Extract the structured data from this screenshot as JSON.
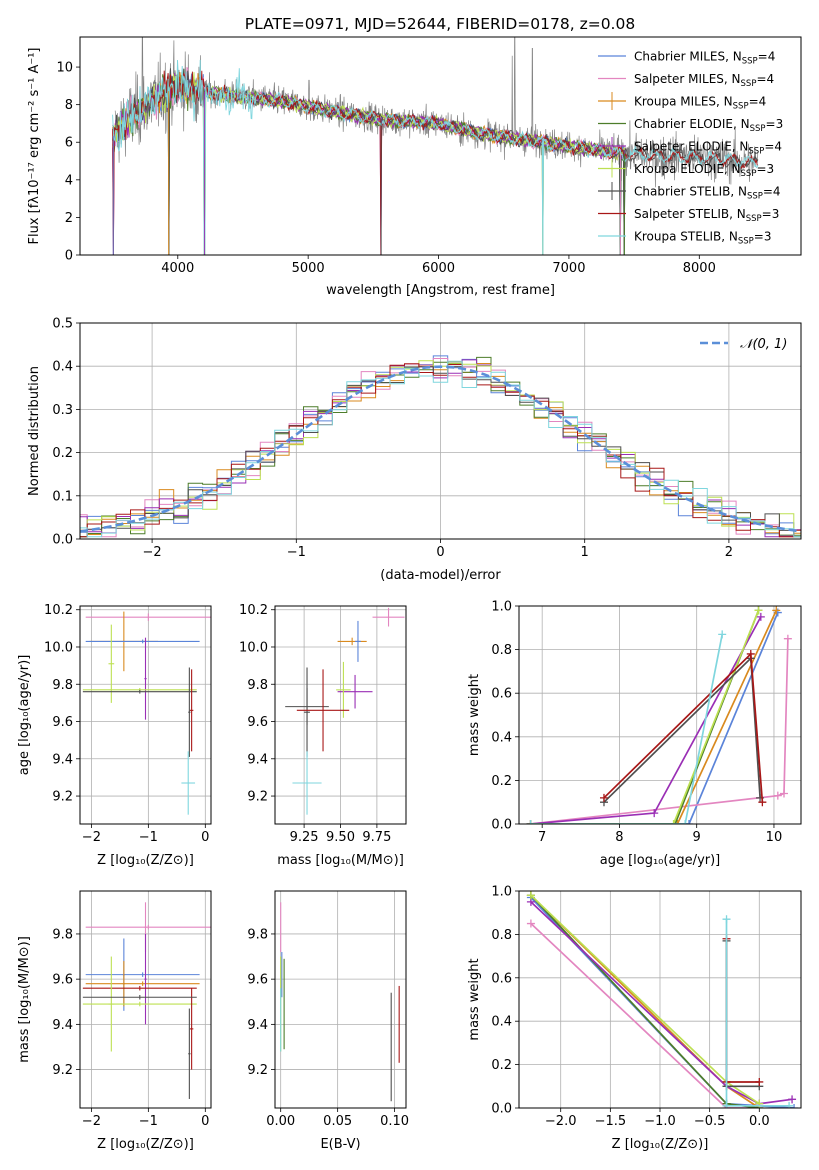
{
  "title": "PLATE=0971, MJD=52644, FIBERID=0178, z=0.08",
  "colors": {
    "Chabrier MILES": "#5b84d9",
    "Salpeter MILES": "#e386c0",
    "Kroupa MILES": "#d98a1f",
    "Chabrier ELODIE": "#4d7d2a",
    "Salpeter ELODIE": "#9a2fb5",
    "Kroupa ELODIE": "#bde052",
    "Chabrier STELIB": "#4f4f4f",
    "Salpeter STELIB": "#a81717",
    "Kroupa STELIB": "#7fd6de",
    "data": "#808080",
    "gaussian": "#5b8fd8"
  },
  "chart_data": [
    {
      "id": "spectrum",
      "type": "line",
      "xlabel": "wavelength [Angstrom, rest frame]",
      "ylabel": "Flux [fλ10⁻¹⁷ erg cm⁻² s⁻¹ A⁻¹]",
      "xlim": [
        3250,
        8780
      ],
      "ylim": [
        0,
        11.6
      ],
      "xticks": [
        4000,
        5000,
        6000,
        7000,
        8000
      ],
      "yticks": [
        0,
        2,
        4,
        6,
        8,
        10
      ],
      "grid": false,
      "legend_position": "top-right",
      "legend": [
        {
          "name": "Chabrier MILES",
          "nssp": "4"
        },
        {
          "name": "Salpeter MILES",
          "nssp": "4"
        },
        {
          "name": "Kroupa MILES",
          "nssp": "4"
        },
        {
          "name": "Chabrier ELODIE",
          "nssp": "3"
        },
        {
          "name": "Salpeter ELODIE",
          "nssp": "4"
        },
        {
          "name": "Kroupa ELODIE",
          "nssp": "3"
        },
        {
          "name": "Chabrier STELIB",
          "nssp": "4"
        },
        {
          "name": "Salpeter STELIB",
          "nssp": "3"
        },
        {
          "name": "Kroupa STELIB",
          "nssp": "3"
        }
      ],
      "continuum": {
        "x": [
          3500,
          3600,
          3800,
          4000,
          4200,
          4500,
          4800,
          5000,
          5300,
          5600,
          6000,
          6300,
          6600,
          6900,
          7200,
          7400,
          7700,
          8000,
          8300,
          8450
        ],
        "y": [
          6.3,
          7.1,
          8.2,
          9.0,
          8.7,
          8.4,
          8.2,
          7.9,
          7.5,
          7.2,
          7.0,
          6.5,
          6.2,
          5.9,
          5.6,
          5.4,
          5.3,
          5.2,
          5.0,
          4.9
        ]
      },
      "model_range": [
        3500,
        7430
      ],
      "stelib_range": [
        3500,
        8450
      ],
      "data_range": [
        3520,
        8450
      ],
      "emission_lines": [
        {
          "x": 6565,
          "y": 10.6
        },
        {
          "x": 6585,
          "y": 11.6
        },
        {
          "x": 6720,
          "y": 11.0
        },
        {
          "x": 3729,
          "y": 11.6
        },
        {
          "x": 5007,
          "y": 9.3
        }
      ],
      "model_dropouts": [
        3505,
        3930,
        4205,
        5560,
        6800,
        7395,
        7425
      ]
    },
    {
      "id": "residuals",
      "type": "step",
      "xlabel": "(data-model)/error",
      "ylabel": "Normed distribution",
      "xlim": [
        -2.5,
        2.5
      ],
      "ylim": [
        0,
        0.5
      ],
      "xticks": [
        -2,
        -1,
        0,
        1,
        2
      ],
      "yticks": [
        0.0,
        0.1,
        0.2,
        0.3,
        0.4,
        0.5
      ],
      "grid": true,
      "legend_position": "top-right",
      "gaussian_label": "𝒩(0, 1)",
      "bin_width": 0.1
    },
    {
      "id": "age-vs-Z",
      "type": "errorbar",
      "xlabel": "Z [log₁₀(Z/Z⊙)]",
      "ylabel": "age  [log₁₀(age/yr)]",
      "xlim": [
        -2.2,
        0.1
      ],
      "ylim": [
        9.05,
        10.22
      ],
      "xticks": [
        -2,
        -1,
        0
      ],
      "yticks": [
        9.2,
        9.4,
        9.6,
        9.8,
        10.0,
        10.2
      ],
      "grid": true,
      "points": [
        {
          "model": "Salpeter MILES",
          "x": -1.0,
          "xerr": 1.1,
          "y": 10.16,
          "yerr": 0.02
        },
        {
          "model": "Kroupa MILES",
          "x": -1.43,
          "xerr": 0.6,
          "y": 10.03,
          "yerr": 0.16
        },
        {
          "model": "Chabrier MILES",
          "x": -1.1,
          "xerr": 1.0,
          "y": 10.03,
          "yerr": 0.01
        },
        {
          "model": "Salpeter ELODIE",
          "x": -1.05,
          "xerr": 0.02,
          "y": 9.83,
          "yerr": 0.22
        },
        {
          "model": "Kroupa ELODIE",
          "x": -1.65,
          "xerr": 0.05,
          "y": 9.91,
          "yerr": 0.21
        },
        {
          "model": "Kroupa ELODIE",
          "x": -1.15,
          "xerr": 1.0,
          "y": 9.77,
          "yerr": 0.01
        },
        {
          "model": "Chabrier STELIB",
          "x": -1.15,
          "xerr": 1.0,
          "y": 9.76,
          "yerr": 0.01
        },
        {
          "model": "Chabrier STELIB",
          "x": -0.28,
          "xerr": 0.02,
          "y": 9.65,
          "yerr": 0.24
        },
        {
          "model": "Salpeter STELIB",
          "x": -0.24,
          "xerr": 0.03,
          "y": 9.66,
          "yerr": 0.22
        },
        {
          "model": "Kroupa STELIB",
          "x": -0.3,
          "xerr": 0.12,
          "y": 9.27,
          "yerr": 0.17
        }
      ]
    },
    {
      "id": "age-vs-mass",
      "type": "errorbar",
      "xlabel": "mass [log₁₀(M/M⊙)]",
      "ylabel": "",
      "xlim": [
        9.05,
        9.95
      ],
      "ylim": [
        9.05,
        10.22
      ],
      "xticks": [
        9.25,
        9.5,
        9.75
      ],
      "xticklabels": [
        "9.25",
        "9.50",
        "9.75"
      ],
      "yticks": [
        9.2,
        9.4,
        9.6,
        9.8,
        10.0,
        10.2
      ],
      "grid": true,
      "points": [
        {
          "model": "Salpeter MILES",
          "x": 9.83,
          "xerr": 0.11,
          "y": 10.16,
          "yerr": 0.05
        },
        {
          "model": "Kroupa MILES",
          "x": 9.58,
          "xerr": 0.1,
          "y": 10.03,
          "yerr": 0.02
        },
        {
          "model": "Chabrier MILES",
          "x": 9.62,
          "xerr": 0.02,
          "y": 10.03,
          "yerr": 0.11
        },
        {
          "model": "Salpeter ELODIE",
          "x": 9.6,
          "xerr": 0.12,
          "y": 9.76,
          "yerr": 0.09
        },
        {
          "model": "Kroupa ELODIE",
          "x": 9.52,
          "xerr": 0.05,
          "y": 9.77,
          "yerr": 0.15
        },
        {
          "model": "Chabrier STELIB",
          "x": 9.27,
          "xerr": 0.15,
          "y": 9.68,
          "yerr": 0.1
        },
        {
          "model": "Chabrier STELIB",
          "x": 9.27,
          "xerr": 0.02,
          "y": 9.65,
          "yerr": 0.24
        },
        {
          "model": "Salpeter STELIB",
          "x": 9.38,
          "xerr": 0.18,
          "y": 9.66,
          "yerr": 0.22
        },
        {
          "model": "Kroupa STELIB",
          "x": 9.27,
          "xerr": 0.1,
          "y": 9.27,
          "yerr": 0.17
        }
      ]
    },
    {
      "id": "cumulative-age",
      "type": "line",
      "xlabel": "age  [log₁₀(age/yr)]",
      "ylabel": "mass weight",
      "xlim": [
        6.7,
        10.35
      ],
      "ylim": [
        0,
        1
      ],
      "xticks": [
        7,
        8,
        9,
        10
      ],
      "yticks": [
        0.0,
        0.2,
        0.4,
        0.6,
        0.8,
        1.0
      ],
      "grid": true,
      "series": [
        {
          "name": "Chabrier MILES",
          "x": [
            6.85,
            8.9,
            10.05
          ],
          "y": [
            0.0,
            0.0,
            0.97
          ]
        },
        {
          "name": "Salpeter MILES",
          "x": [
            6.85,
            10.05,
            10.13,
            10.18
          ],
          "y": [
            0.0,
            0.13,
            0.14,
            0.85
          ]
        },
        {
          "name": "Kroupa MILES",
          "x": [
            6.85,
            8.75,
            10.03
          ],
          "y": [
            0.0,
            0.0,
            0.98
          ]
        },
        {
          "name": "Chabrier ELODIE",
          "x": [
            6.85,
            8.72,
            9.8
          ],
          "y": [
            0.0,
            0.0,
            0.98
          ]
        },
        {
          "name": "Salpeter ELODIE",
          "x": [
            6.85,
            8.45,
            9.83
          ],
          "y": [
            0.0,
            0.05,
            0.95
          ]
        },
        {
          "name": "Kroupa ELODIE",
          "x": [
            6.85,
            8.7,
            9.8
          ],
          "y": [
            0.0,
            0.0,
            0.98
          ]
        },
        {
          "name": "Chabrier STELIB",
          "x": [
            7.8,
            9.7,
            9.82
          ],
          "y": [
            0.1,
            0.76,
            0.12
          ]
        },
        {
          "name": "Salpeter STELIB",
          "x": [
            7.8,
            9.7,
            9.85
          ],
          "y": [
            0.12,
            0.78,
            0.1
          ]
        },
        {
          "name": "Kroupa STELIB",
          "x": [
            6.85,
            8.85,
            9.33
          ],
          "y": [
            0.0,
            0.0,
            0.87
          ]
        }
      ]
    },
    {
      "id": "mass-vs-Z",
      "type": "errorbar",
      "xlabel": "Z [log₁₀(Z/Z⊙)]",
      "ylabel": "mass [log₁₀(M/M⊙)]",
      "xlim": [
        -2.2,
        0.1
      ],
      "ylim": [
        9.03,
        9.99
      ],
      "xticks": [
        -2,
        -1,
        0
      ],
      "yticks": [
        9.2,
        9.4,
        9.6,
        9.8
      ],
      "grid": true,
      "points": [
        {
          "model": "Salpeter MILES",
          "x": -1.0,
          "xerr": 1.1,
          "y": 9.83,
          "yerr": 0.01
        },
        {
          "model": "Salpeter MILES",
          "x": -1.05,
          "xerr": 0.02,
          "y": 9.83,
          "yerr": 0.11
        },
        {
          "model": "Chabrier MILES",
          "x": -1.1,
          "xerr": 1.0,
          "y": 9.62,
          "yerr": 0.01
        },
        {
          "model": "Chabrier MILES",
          "x": -1.43,
          "xerr": 0.02,
          "y": 9.62,
          "yerr": 0.16
        },
        {
          "model": "Kroupa MILES",
          "x": -1.43,
          "xerr": 0.02,
          "y": 9.58,
          "yerr": 0.1
        },
        {
          "model": "Kroupa MILES",
          "x": -1.1,
          "xerr": 1.0,
          "y": 9.58,
          "yerr": 0.01
        },
        {
          "model": "Salpeter ELODIE",
          "x": -1.05,
          "xerr": 0.02,
          "y": 9.6,
          "yerr": 0.2
        },
        {
          "model": "Salpeter STELIB",
          "x": -1.15,
          "xerr": 1.0,
          "y": 9.56,
          "yerr": 0.01
        },
        {
          "model": "Kroupa ELODIE",
          "x": -1.65,
          "xerr": 0.05,
          "y": 9.49,
          "yerr": 0.21
        },
        {
          "model": "Kroupa ELODIE",
          "x": -1.15,
          "xerr": 1.0,
          "y": 9.49,
          "yerr": 0.01
        },
        {
          "model": "Chabrier STELIB",
          "x": -0.28,
          "xerr": 0.02,
          "y": 9.27,
          "yerr": 0.2
        },
        {
          "model": "Salpeter STELIB",
          "x": -0.24,
          "xerr": 0.03,
          "y": 9.38,
          "yerr": 0.18
        },
        {
          "model": "Chabrier STELIB",
          "x": -1.15,
          "xerr": 1.0,
          "y": 9.52,
          "yerr": 0.01
        }
      ]
    },
    {
      "id": "mass-vs-ebv",
      "type": "errorbar",
      "xlabel": "E(B-V)",
      "ylabel": "",
      "xlim": [
        -0.005,
        0.11
      ],
      "ylim": [
        9.03,
        9.99
      ],
      "xticks": [
        0.0,
        0.05,
        0.1
      ],
      "xticklabels": [
        "0.00",
        "0.05",
        "0.10"
      ],
      "yticks": [
        9.2,
        9.4,
        9.6,
        9.8
      ],
      "grid": true,
      "points": [
        {
          "model": "Salpeter MILES",
          "x": 0.0,
          "xerr": 0.0,
          "y": 9.83,
          "yerr": 0.11
        },
        {
          "model": "Chabrier MILES",
          "x": 0.001,
          "xerr": 0.0,
          "y": 9.62,
          "yerr": 0.1
        },
        {
          "model": "Kroupa ELODIE",
          "x": 0.0,
          "xerr": 0.0,
          "y": 9.49,
          "yerr": 0.21
        },
        {
          "model": "Chabrier ELODIE",
          "x": 0.003,
          "xerr": 0.0,
          "y": 9.49,
          "yerr": 0.2
        },
        {
          "model": "Kroupa STELIB",
          "x": 0.0,
          "xerr": 0.0,
          "y": 9.42,
          "yerr": 0.14
        },
        {
          "model": "Chabrier STELIB",
          "x": 0.097,
          "xerr": 0.0,
          "y": 9.3,
          "yerr": 0.24
        },
        {
          "model": "Salpeter STELIB",
          "x": 0.104,
          "xerr": 0.0,
          "y": 9.4,
          "yerr": 0.17
        }
      ]
    },
    {
      "id": "cumulative-Z",
      "type": "line",
      "xlabel": "Z [log₁₀(Z/Z⊙)]",
      "ylabel": "mass weight",
      "xlim": [
        -2.42,
        0.42
      ],
      "ylim": [
        0,
        1
      ],
      "xticks": [
        -2.0,
        -1.5,
        -1.0,
        -0.5,
        0.0
      ],
      "xticklabels": [
        "−2.0",
        "−1.5",
        "−1.0",
        "−0.5",
        "0.0"
      ],
      "yticks": [
        0.0,
        0.2,
        0.4,
        0.6,
        0.8,
        1.0
      ],
      "grid": true,
      "series": [
        {
          "name": "Chabrier MILES",
          "x": [
            -2.3,
            -0.33,
            0.35
          ],
          "y": [
            0.97,
            0.02,
            0.0
          ]
        },
        {
          "name": "Salpeter MILES",
          "x": [
            -2.3,
            -0.33,
            0.0
          ],
          "y": [
            0.85,
            0.0,
            0.0
          ]
        },
        {
          "name": "Kroupa MILES",
          "x": [
            -2.3,
            -0.33,
            0.0
          ],
          "y": [
            0.98,
            0.1,
            0.0
          ]
        },
        {
          "name": "Chabrier ELODIE",
          "x": [
            -2.3,
            -0.33,
            0.0
          ],
          "y": [
            0.98,
            0.02,
            0.0
          ]
        },
        {
          "name": "Salpeter ELODIE",
          "x": [
            -2.3,
            -0.33,
            0.0,
            0.33
          ],
          "y": [
            0.95,
            0.1,
            0.02,
            0.04
          ]
        },
        {
          "name": "Kroupa ELODIE",
          "x": [
            -2.3,
            -0.33,
            0.0
          ],
          "y": [
            0.98,
            0.12,
            0.02
          ]
        },
        {
          "name": "Chabrier STELIB",
          "x": [
            -0.33,
            -0.33,
            0.0
          ],
          "y": [
            0.77,
            0.1,
            0.1
          ]
        },
        {
          "name": "Salpeter STELIB",
          "x": [
            -0.33,
            -0.33,
            0.0
          ],
          "y": [
            0.78,
            0.12,
            0.12
          ]
        },
        {
          "name": "Kroupa STELIB",
          "x": [
            -0.33,
            -0.33,
            0.3
          ],
          "y": [
            0.87,
            0.01,
            0.01
          ]
        }
      ]
    }
  ]
}
